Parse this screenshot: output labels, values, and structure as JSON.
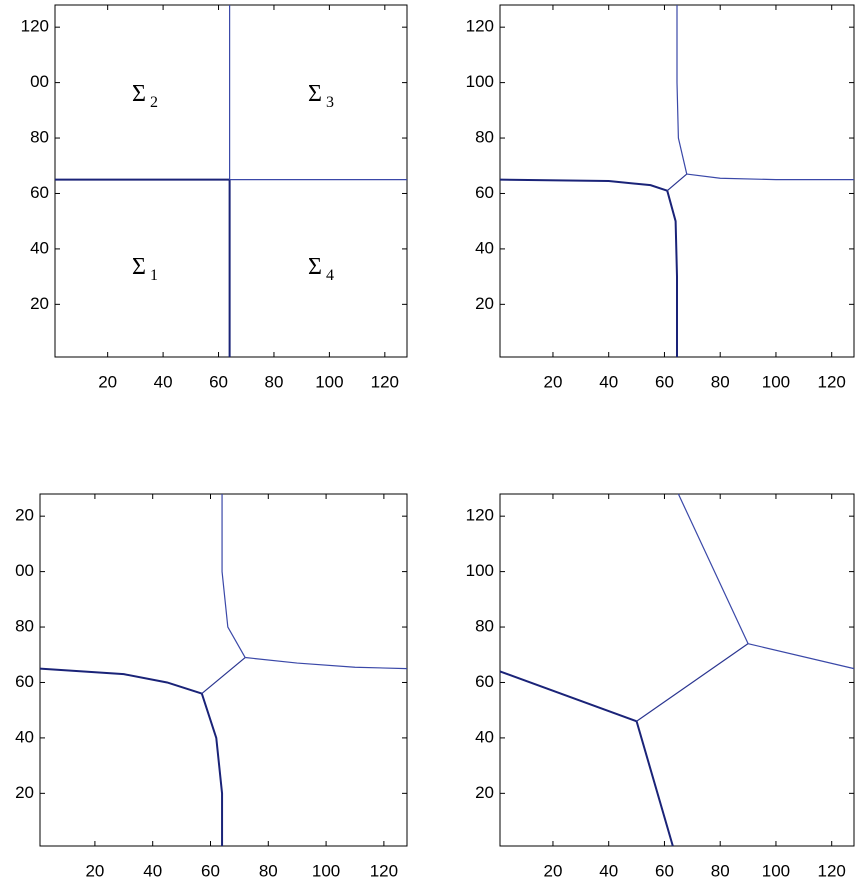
{
  "chart_data": [
    {
      "type": "line",
      "xlim": [
        1,
        128
      ],
      "ylim": [
        1,
        128
      ],
      "xticks": [
        20,
        40,
        60,
        80,
        100,
        120
      ],
      "yticks": [
        20,
        40,
        60,
        80,
        {
          "value": 100,
          "label": "00"
        },
        120
      ],
      "annotations": [
        {
          "text": "Σ",
          "sub": "2"
        },
        {
          "text": "Σ",
          "sub": "3"
        },
        {
          "text": "Σ",
          "sub": "1"
        },
        {
          "text": "Σ",
          "sub": "4"
        }
      ],
      "series": [
        {
          "color": "#1a2378",
          "x": [
            1,
            64
          ],
          "values": [
            65,
            65
          ]
        },
        {
          "color": "#1a2378",
          "x": [
            64,
            64
          ],
          "values": [
            65,
            1
          ]
        },
        {
          "color": "#3a48a8",
          "x": [
            64,
            64
          ],
          "values": [
            65,
            128
          ]
        },
        {
          "color": "#3a48a8",
          "x": [
            64,
            128
          ],
          "values": [
            65,
            65
          ]
        }
      ]
    },
    {
      "type": "line",
      "xlim": [
        1,
        128
      ],
      "ylim": [
        1,
        128
      ],
      "xticks": [
        20,
        40,
        60,
        80,
        100,
        120
      ],
      "yticks": [
        20,
        40,
        60,
        80,
        100,
        120
      ],
      "series": [
        {
          "color": "#1a2378",
          "x": [
            1,
            40,
            55,
            61
          ],
          "values": [
            65,
            64.5,
            63,
            61
          ]
        },
        {
          "color": "#1a2378",
          "x": [
            61,
            64,
            64.5,
            64.5
          ],
          "values": [
            61,
            50,
            30,
            1
          ]
        },
        {
          "color": "#2a3590",
          "x": [
            61,
            68
          ],
          "values": [
            61,
            67
          ]
        },
        {
          "color": "#3a48a8",
          "x": [
            68,
            65,
            64.5,
            64.5
          ],
          "values": [
            67,
            80,
            100,
            128
          ]
        },
        {
          "color": "#3a48a8",
          "x": [
            68,
            80,
            100,
            128
          ],
          "values": [
            67,
            65.5,
            65,
            65
          ]
        }
      ]
    },
    {
      "type": "line",
      "xlim": [
        1,
        128
      ],
      "ylim": [
        1,
        128
      ],
      "xticks": [
        20,
        40,
        60,
        80,
        100,
        120
      ],
      "yticks": [
        20,
        40,
        60,
        80,
        {
          "value": 100,
          "label": "00"
        },
        {
          "value": 120,
          "label": "20"
        }
      ],
      "series": [
        {
          "color": "#1a2378",
          "x": [
            1,
            30,
            45,
            57
          ],
          "values": [
            65,
            63,
            60,
            56
          ]
        },
        {
          "color": "#1a2378",
          "x": [
            57,
            62,
            64,
            64
          ],
          "values": [
            56,
            40,
            20,
            1
          ]
        },
        {
          "color": "#2a3590",
          "x": [
            57,
            72
          ],
          "values": [
            56,
            69
          ]
        },
        {
          "color": "#3a48a8",
          "x": [
            72,
            66,
            64,
            64
          ],
          "values": [
            69,
            80,
            100,
            128
          ]
        },
        {
          "color": "#3a48a8",
          "x": [
            72,
            90,
            110,
            128
          ],
          "values": [
            69,
            67,
            65.5,
            65
          ]
        }
      ]
    },
    {
      "type": "line",
      "xlim": [
        1,
        128
      ],
      "ylim": [
        1,
        128
      ],
      "xticks": [
        20,
        40,
        60,
        80,
        100,
        120
      ],
      "yticks": [
        20,
        40,
        60,
        80,
        100,
        120
      ],
      "series": [
        {
          "color": "#1a2378",
          "x": [
            1,
            50
          ],
          "values": [
            64,
            46
          ]
        },
        {
          "color": "#1a2378",
          "x": [
            50,
            63
          ],
          "values": [
            46,
            1
          ]
        },
        {
          "color": "#2a3590",
          "x": [
            50,
            90
          ],
          "values": [
            46,
            74
          ]
        },
        {
          "color": "#3a48a8",
          "x": [
            90,
            65
          ],
          "values": [
            74,
            128
          ]
        },
        {
          "color": "#3a48a8",
          "x": [
            90,
            128
          ],
          "values": [
            74,
            65
          ]
        }
      ]
    }
  ]
}
